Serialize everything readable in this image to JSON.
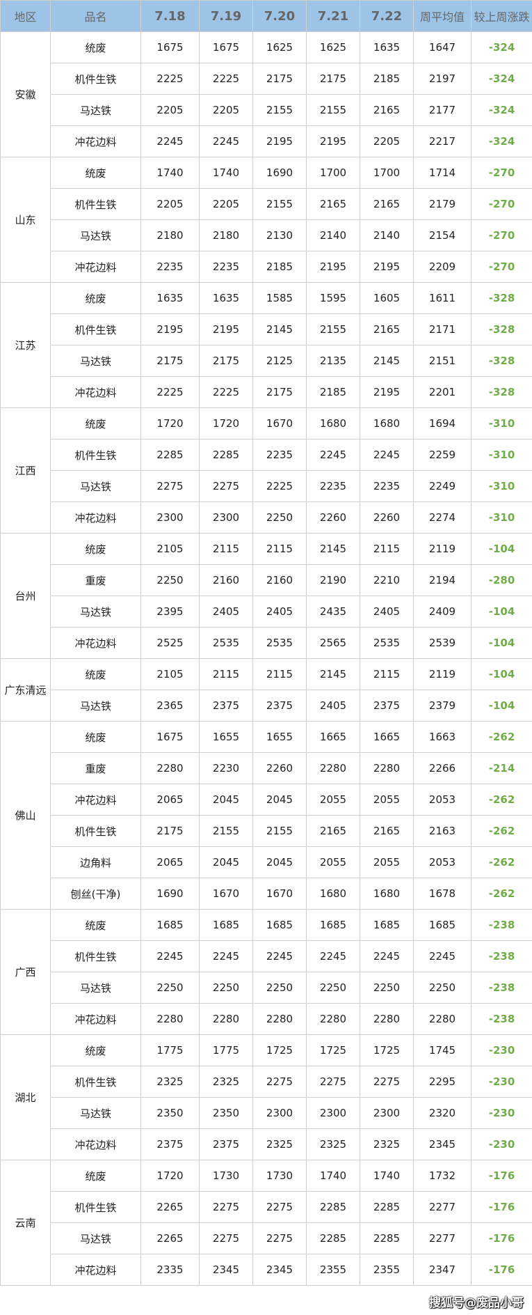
{
  "header": [
    "地区",
    "品名",
    "7.18",
    "7.19",
    "7.20",
    "7.21",
    "7.22",
    "周平均值",
    "较上周涨跌"
  ],
  "colors": {
    "header_bg": "#9dc3e6",
    "change_text": "#70ad47"
  },
  "regions": [
    {
      "name": "安徽",
      "rows": [
        [
          "统废",
          "1675",
          "1675",
          "1625",
          "1625",
          "1635",
          "1647",
          "-324"
        ],
        [
          "机件生铁",
          "2225",
          "2225",
          "2175",
          "2175",
          "2185",
          "2197",
          "-324"
        ],
        [
          "马达铁",
          "2205",
          "2205",
          "2155",
          "2155",
          "2165",
          "2177",
          "-324"
        ],
        [
          "冲花边料",
          "2245",
          "2245",
          "2195",
          "2195",
          "2205",
          "2217",
          "-324"
        ]
      ]
    },
    {
      "name": "山东",
      "rows": [
        [
          "统废",
          "1740",
          "1740",
          "1690",
          "1700",
          "1700",
          "1714",
          "-270"
        ],
        [
          "机件生铁",
          "2205",
          "2205",
          "2155",
          "2165",
          "2165",
          "2179",
          "-270"
        ],
        [
          "马达铁",
          "2180",
          "2180",
          "2130",
          "2140",
          "2140",
          "2154",
          "-270"
        ],
        [
          "冲花边料",
          "2235",
          "2235",
          "2185",
          "2195",
          "2195",
          "2209",
          "-270"
        ]
      ]
    },
    {
      "name": "江苏",
      "rows": [
        [
          "统废",
          "1635",
          "1635",
          "1585",
          "1595",
          "1605",
          "1611",
          "-328"
        ],
        [
          "机件生铁",
          "2195",
          "2195",
          "2145",
          "2155",
          "2165",
          "2171",
          "-328"
        ],
        [
          "马达铁",
          "2175",
          "2175",
          "2125",
          "2135",
          "2145",
          "2151",
          "-328"
        ],
        [
          "冲花边料",
          "2225",
          "2225",
          "2175",
          "2185",
          "2195",
          "2201",
          "-328"
        ]
      ]
    },
    {
      "name": "江西",
      "rows": [
        [
          "统废",
          "1720",
          "1720",
          "1670",
          "1680",
          "1680",
          "1694",
          "-310"
        ],
        [
          "机件生铁",
          "2285",
          "2285",
          "2235",
          "2245",
          "2245",
          "2259",
          "-310"
        ],
        [
          "马达铁",
          "2275",
          "2275",
          "2225",
          "2235",
          "2235",
          "2249",
          "-310"
        ],
        [
          "冲花边料",
          "2300",
          "2300",
          "2250",
          "2260",
          "2260",
          "2274",
          "-310"
        ]
      ]
    },
    {
      "name": "台州",
      "rows": [
        [
          "统废",
          "2105",
          "2115",
          "2115",
          "2145",
          "2115",
          "2119",
          "-104"
        ],
        [
          "重废",
          "2250",
          "2160",
          "2160",
          "2190",
          "2210",
          "2194",
          "-280"
        ],
        [
          "马达铁",
          "2395",
          "2405",
          "2405",
          "2435",
          "2405",
          "2409",
          "-104"
        ],
        [
          "冲花边料",
          "2525",
          "2535",
          "2535",
          "2565",
          "2535",
          "2539",
          "-104"
        ]
      ]
    },
    {
      "name": "广东清远",
      "rows": [
        [
          "统废",
          "2105",
          "2115",
          "2115",
          "2145",
          "2115",
          "2119",
          "-104"
        ],
        [
          "马达铁",
          "2365",
          "2375",
          "2375",
          "2405",
          "2375",
          "2379",
          "-104"
        ]
      ]
    },
    {
      "name": "佛山",
      "rows": [
        [
          "统废",
          "1675",
          "1655",
          "1655",
          "1665",
          "1665",
          "1663",
          "-262"
        ],
        [
          "重废",
          "2280",
          "2230",
          "2260",
          "2280",
          "2280",
          "2266",
          "-214"
        ],
        [
          "冲花边料",
          "2065",
          "2045",
          "2045",
          "2055",
          "2055",
          "2053",
          "-262"
        ],
        [
          "机件生铁",
          "2175",
          "2155",
          "2155",
          "2165",
          "2165",
          "2163",
          "-262"
        ],
        [
          "边角料",
          "2065",
          "2045",
          "2045",
          "2055",
          "2055",
          "2053",
          "-262"
        ],
        [
          "刨丝(干净)",
          "1690",
          "1670",
          "1670",
          "1680",
          "1680",
          "1678",
          "-262"
        ]
      ]
    },
    {
      "name": "广西",
      "rows": [
        [
          "统废",
          "1685",
          "1685",
          "1685",
          "1685",
          "1685",
          "1685",
          "-238"
        ],
        [
          "机件生铁",
          "2245",
          "2245",
          "2245",
          "2245",
          "2245",
          "2245",
          "-238"
        ],
        [
          "马达铁",
          "2250",
          "2250",
          "2250",
          "2250",
          "2250",
          "2250",
          "-238"
        ],
        [
          "冲花边料",
          "2280",
          "2280",
          "2280",
          "2280",
          "2280",
          "2280",
          "-238"
        ]
      ]
    },
    {
      "name": "湖北",
      "rows": [
        [
          "统废",
          "1775",
          "1775",
          "1725",
          "1725",
          "1725",
          "1745",
          "-230"
        ],
        [
          "机件生铁",
          "2325",
          "2325",
          "2275",
          "2275",
          "2275",
          "2295",
          "-230"
        ],
        [
          "马达铁",
          "2350",
          "2350",
          "2300",
          "2300",
          "2300",
          "2320",
          "-230"
        ],
        [
          "冲花边料",
          "2375",
          "2375",
          "2325",
          "2325",
          "2325",
          "2345",
          "-230"
        ]
      ]
    },
    {
      "name": "云南",
      "rows": [
        [
          "统废",
          "1720",
          "1730",
          "1730",
          "1740",
          "1740",
          "1732",
          "-176"
        ],
        [
          "机件生铁",
          "2265",
          "2275",
          "2275",
          "2285",
          "2285",
          "2277",
          "-176"
        ],
        [
          "马达铁",
          "2265",
          "2275",
          "2275",
          "2285",
          "2285",
          "2277",
          "-176"
        ],
        [
          "冲花边料",
          "2335",
          "2345",
          "2345",
          "2355",
          "2355",
          "2347",
          "-176"
        ]
      ]
    }
  ],
  "watermark": "搜狐号@废品小哥"
}
